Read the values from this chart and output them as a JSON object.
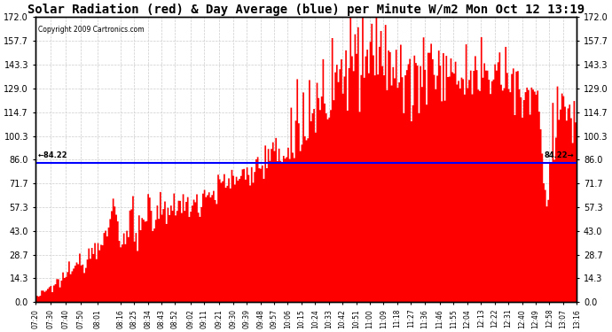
{
  "title": "Solar Radiation (red) & Day Average (blue) per Minute W/m2 Mon Oct 12 13:19",
  "copyright": "Copyright 2009 Cartronics.com",
  "day_average": 84.22,
  "ylim": [
    0.0,
    172.0
  ],
  "yticks": [
    0.0,
    14.3,
    28.7,
    43.0,
    57.3,
    71.7,
    86.0,
    100.3,
    114.7,
    129.0,
    143.3,
    157.7,
    172.0
  ],
  "background_color": "#ffffff",
  "plot_bg_color": "#ffffff",
  "grid_color": "#cccccc",
  "fill_color": "red",
  "line_color": "blue",
  "title_fontsize": 10,
  "x_labels": [
    "07:20",
    "07:30",
    "07:40",
    "07:50",
    "08:01",
    "08:16",
    "08:25",
    "08:34",
    "08:43",
    "08:52",
    "09:02",
    "09:11",
    "09:21",
    "09:30",
    "09:39",
    "09:48",
    "09:57",
    "10:06",
    "10:15",
    "10:24",
    "10:33",
    "10:42",
    "10:51",
    "11:00",
    "11:09",
    "11:18",
    "11:27",
    "11:36",
    "11:46",
    "11:55",
    "12:04",
    "12:13",
    "12:22",
    "12:31",
    "12:40",
    "12:49",
    "12:58",
    "13:07",
    "13:16"
  ]
}
